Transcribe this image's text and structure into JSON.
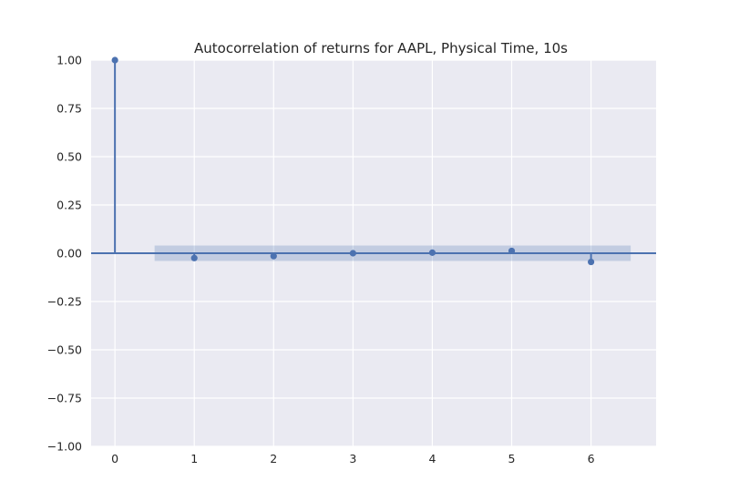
{
  "chart_data": {
    "type": "stem",
    "title": "Autocorrelation of returns for AAPL, Physical Time, 10s",
    "xlabel": "",
    "ylabel": "",
    "xlim": [
      -0.3,
      6.82
    ],
    "ylim": [
      -1.0,
      1.0
    ],
    "x_ticks": [
      "0",
      "1",
      "2",
      "3",
      "4",
      "5",
      "6"
    ],
    "y_ticks": [
      "1.00",
      "0.75",
      "0.50",
      "0.25",
      "0.00",
      "−0.25",
      "−0.50",
      "−0.75",
      "−1.00"
    ],
    "grid": true,
    "legend": "none",
    "lags": [
      0,
      1,
      2,
      3,
      4,
      5,
      6
    ],
    "values": [
      1.0,
      -0.025,
      -0.015,
      0.0,
      0.003,
      0.012,
      -0.045
    ],
    "confidence_interval": {
      "x_range": [
        0.5,
        6.5
      ],
      "lower": -0.04,
      "upper": 0.04
    },
    "colors": {
      "series": "#4c72b0",
      "band": "#4c72b0",
      "axes_background": "#eaeaf2",
      "grid": "#ffffff",
      "text": "#262626"
    }
  }
}
